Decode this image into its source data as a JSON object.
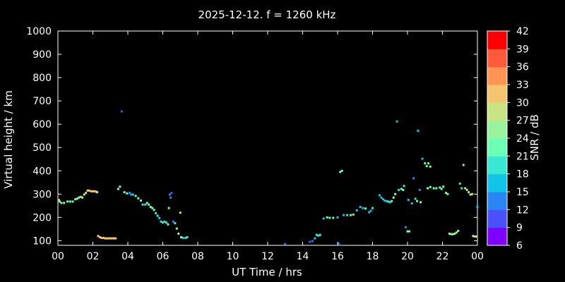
{
  "chart_data": {
    "type": "scatter",
    "title": "2025-12-12. f = 1260 kHz",
    "xlabel": "UT Time / hrs",
    "ylabel": "Virtual height / km",
    "colorbar_label": "SNR / dB",
    "xlim": [
      0,
      24
    ],
    "ylim": [
      80,
      1000
    ],
    "xtick_labels": [
      "00",
      "02",
      "04",
      "06",
      "08",
      "10",
      "12",
      "14",
      "16",
      "18",
      "20",
      "22",
      "00"
    ],
    "ytick_labels": [
      "100",
      "200",
      "300",
      "400",
      "500",
      "600",
      "700",
      "800",
      "900",
      "1000"
    ],
    "colorbar": {
      "ticks": [
        "6",
        "9",
        "12",
        "15",
        "18",
        "21",
        "24",
        "27",
        "30",
        "33",
        "36",
        "39",
        "42"
      ],
      "colors": [
        "#7f00ff",
        "#4a50fc",
        "#2a86f2",
        "#12c4e8",
        "#39e8d2",
        "#6cffb6",
        "#99f29e",
        "#c8e485",
        "#f4c46e",
        "#ff9455",
        "#ff5a3a",
        "#ff0000"
      ]
    },
    "points": [
      [
        0.05,
        275,
        27
      ],
      [
        0.1,
        268,
        26
      ],
      [
        0.2,
        262,
        22
      ],
      [
        0.35,
        262,
        22
      ],
      [
        0.55,
        268,
        22
      ],
      [
        0.7,
        268,
        22
      ],
      [
        0.85,
        268,
        21
      ],
      [
        1.0,
        278,
        22
      ],
      [
        1.1,
        280,
        23
      ],
      [
        1.2,
        285,
        24
      ],
      [
        1.3,
        288,
        25
      ],
      [
        1.4,
        285,
        25
      ],
      [
        1.5,
        298,
        27
      ],
      [
        1.6,
        305,
        28
      ],
      [
        1.7,
        315,
        30
      ],
      [
        1.8,
        315,
        30
      ],
      [
        1.9,
        312,
        30
      ],
      [
        2.0,
        312,
        30
      ],
      [
        2.1,
        312,
        31
      ],
      [
        2.2,
        310,
        30
      ],
      [
        2.25,
        308,
        29
      ],
      [
        2.3,
        120,
        30
      ],
      [
        2.4,
        115,
        30
      ],
      [
        2.5,
        112,
        30
      ],
      [
        2.6,
        112,
        30
      ],
      [
        2.7,
        110,
        30
      ],
      [
        2.8,
        110,
        30
      ],
      [
        2.9,
        110,
        30
      ],
      [
        3.0,
        110,
        30
      ],
      [
        3.1,
        110,
        30
      ],
      [
        3.2,
        110,
        30
      ],
      [
        3.3,
        110,
        30
      ],
      [
        3.45,
        322,
        24
      ],
      [
        3.55,
        332,
        24
      ],
      [
        3.65,
        655,
        11
      ],
      [
        3.8,
        308,
        22
      ],
      [
        3.95,
        303,
        21
      ],
      [
        4.1,
        305,
        12
      ],
      [
        4.2,
        298,
        15
      ],
      [
        4.3,
        298,
        16
      ],
      [
        4.45,
        292,
        23
      ],
      [
        4.6,
        282,
        23
      ],
      [
        4.75,
        272,
        24
      ],
      [
        4.85,
        255,
        18
      ],
      [
        5.0,
        255,
        18
      ],
      [
        5.1,
        262,
        22
      ],
      [
        5.2,
        255,
        21
      ],
      [
        5.3,
        245,
        22
      ],
      [
        5.4,
        240,
        24
      ],
      [
        5.5,
        232,
        23
      ],
      [
        5.6,
        218,
        20
      ],
      [
        5.7,
        207,
        19
      ],
      [
        5.8,
        197,
        16
      ],
      [
        5.9,
        182,
        19
      ],
      [
        6.0,
        178,
        20
      ],
      [
        6.1,
        182,
        18
      ],
      [
        6.2,
        178,
        18
      ],
      [
        6.3,
        170,
        22
      ],
      [
        6.35,
        240,
        22
      ],
      [
        6.4,
        298,
        12
      ],
      [
        6.5,
        305,
        11
      ],
      [
        6.45,
        285,
        12
      ],
      [
        6.6,
        182,
        13
      ],
      [
        6.7,
        175,
        20
      ],
      [
        6.8,
        152,
        23
      ],
      [
        6.9,
        130,
        24
      ],
      [
        7.0,
        220,
        27
      ],
      [
        7.05,
        115,
        22
      ],
      [
        7.15,
        112,
        18
      ],
      [
        7.3,
        112,
        18
      ],
      [
        7.4,
        115,
        18
      ],
      [
        13.0,
        85,
        12
      ],
      [
        14.4,
        95,
        11
      ],
      [
        14.55,
        98,
        12
      ],
      [
        14.7,
        110,
        15
      ],
      [
        14.8,
        125,
        20
      ],
      [
        14.9,
        122,
        20
      ],
      [
        15.0,
        125,
        20
      ],
      [
        15.2,
        195,
        17
      ],
      [
        15.4,
        200,
        21
      ],
      [
        15.55,
        198,
        22
      ],
      [
        15.75,
        198,
        21
      ],
      [
        16.0,
        200,
        15
      ],
      [
        16.05,
        88,
        12
      ],
      [
        16.15,
        395,
        21
      ],
      [
        16.25,
        400,
        22
      ],
      [
        16.35,
        210,
        17
      ],
      [
        16.55,
        210,
        18
      ],
      [
        16.75,
        210,
        21
      ],
      [
        16.9,
        212,
        21
      ],
      [
        17.1,
        230,
        16
      ],
      [
        17.3,
        245,
        17
      ],
      [
        17.45,
        240,
        17
      ],
      [
        17.6,
        238,
        21
      ],
      [
        17.8,
        222,
        16
      ],
      [
        17.9,
        228,
        16
      ],
      [
        18.0,
        240,
        20
      ],
      [
        18.4,
        295,
        17
      ],
      [
        18.5,
        285,
        17
      ],
      [
        18.6,
        278,
        17
      ],
      [
        18.7,
        272,
        17
      ],
      [
        18.8,
        270,
        17
      ],
      [
        18.9,
        268,
        18
      ],
      [
        19.0,
        265,
        18
      ],
      [
        19.1,
        270,
        21
      ],
      [
        19.2,
        285,
        24
      ],
      [
        19.3,
        300,
        26
      ],
      [
        19.4,
        612,
        17
      ],
      [
        19.5,
        318,
        20
      ],
      [
        19.65,
        322,
        21
      ],
      [
        19.75,
        318,
        21
      ],
      [
        19.8,
        335,
        20
      ],
      [
        19.9,
        158,
        12
      ],
      [
        20.0,
        140,
        23
      ],
      [
        20.1,
        140,
        23
      ],
      [
        20.05,
        275,
        17
      ],
      [
        20.25,
        260,
        17
      ],
      [
        20.35,
        368,
        12
      ],
      [
        20.45,
        280,
        20
      ],
      [
        20.55,
        270,
        23
      ],
      [
        20.6,
        572,
        17
      ],
      [
        20.7,
        318,
        12
      ],
      [
        20.75,
        265,
        23
      ],
      [
        20.85,
        452,
        16
      ],
      [
        21.0,
        432,
        21
      ],
      [
        21.1,
        420,
        22
      ],
      [
        21.2,
        432,
        22
      ],
      [
        21.3,
        418,
        22
      ],
      [
        21.15,
        325,
        21
      ],
      [
        21.3,
        330,
        22
      ],
      [
        21.5,
        325,
        22
      ],
      [
        21.65,
        325,
        22
      ],
      [
        21.85,
        328,
        22
      ],
      [
        21.95,
        322,
        22
      ],
      [
        22.05,
        332,
        22
      ],
      [
        22.2,
        305,
        24
      ],
      [
        22.3,
        300,
        24
      ],
      [
        22.4,
        130,
        24
      ],
      [
        22.5,
        128,
        24
      ],
      [
        22.6,
        128,
        24
      ],
      [
        22.7,
        130,
        24
      ],
      [
        22.8,
        135,
        24
      ],
      [
        22.9,
        142,
        24
      ],
      [
        23.0,
        345,
        20
      ],
      [
        23.1,
        325,
        20
      ],
      [
        23.2,
        425,
        21
      ],
      [
        23.3,
        325,
        23
      ],
      [
        23.4,
        318,
        27
      ],
      [
        23.5,
        308,
        28
      ],
      [
        23.6,
        298,
        29
      ],
      [
        23.7,
        300,
        28
      ],
      [
        23.75,
        120,
        29
      ],
      [
        23.85,
        118,
        29
      ],
      [
        23.95,
        118,
        29
      ],
      [
        24.0,
        245,
        17
      ]
    ]
  }
}
